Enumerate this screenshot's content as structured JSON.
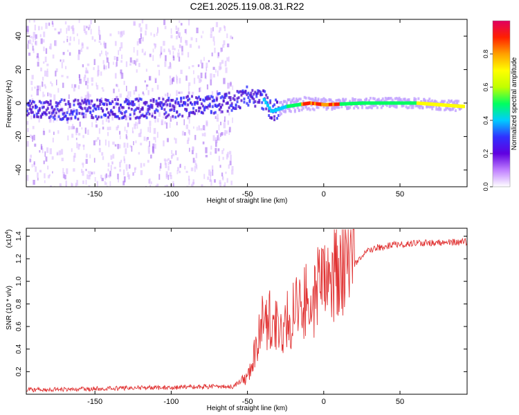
{
  "title": "C2E1.2025.119.08.31.R22",
  "chart_data": [
    {
      "type": "heatmap",
      "xlabel": "Height of straight line (km)",
      "ylabel": "Frequency (Hz)",
      "xlim": [
        -195,
        94
      ],
      "ylim": [
        -50,
        50
      ],
      "xticks": [
        -150,
        -100,
        -50,
        0,
        50
      ],
      "yticks": [
        -40,
        -20,
        0,
        20,
        40
      ],
      "colorbar": {
        "label": "Normalized spectral amplitude",
        "range": [
          0.0,
          1.0
        ],
        "ticks": [
          0.0,
          0.2,
          0.4,
          0.6,
          0.8
        ],
        "colormap": [
          "#ffffff",
          "#c080ff",
          "#6000e0",
          "#3030ff",
          "#00ccff",
          "#00ff60",
          "#c0ff00",
          "#ffff00",
          "#ffa000",
          "#ff2000",
          "#e00060"
        ]
      },
      "features": {
        "ridge_center_hz": [
          [
            -195,
            -4
          ],
          [
            -150,
            -4
          ],
          [
            -100,
            -3
          ],
          [
            -60,
            1
          ],
          [
            -50,
            4
          ],
          [
            -40,
            2
          ],
          [
            -35,
            -5
          ],
          [
            -25,
            -2
          ],
          [
            -10,
            0
          ],
          [
            0,
            -1
          ],
          [
            25,
            0
          ],
          [
            60,
            0
          ],
          [
            90,
            -2
          ]
        ],
        "note": "narrow high-amplitude ridge near 0 Hz above -30 km; broad noisy scatter below -60 km"
      }
    },
    {
      "type": "line",
      "xlabel": "Height of straight line (km)",
      "ylabel": "SNR (10 * v/v)",
      "scale_label": "(x10^4)",
      "xlim": [
        -195,
        94
      ],
      "ylim": [
        0,
        1.47
      ],
      "xticks": [
        -150,
        -100,
        -50,
        0,
        50
      ],
      "yticks": [
        0.2,
        0.4,
        0.6,
        0.8,
        1.0,
        1.2,
        1.4
      ],
      "color": "#e03030",
      "envelope": [
        [
          -195,
          0.03
        ],
        [
          -150,
          0.04
        ],
        [
          -120,
          0.05
        ],
        [
          -100,
          0.05
        ],
        [
          -80,
          0.06
        ],
        [
          -60,
          0.06
        ],
        [
          -55,
          0.1
        ],
        [
          -50,
          0.15
        ],
        [
          -45,
          0.35
        ],
        [
          -40,
          0.6
        ],
        [
          -35,
          0.65
        ],
        [
          -30,
          0.55
        ],
        [
          -25,
          0.6
        ],
        [
          -20,
          0.7
        ],
        [
          -15,
          0.75
        ],
        [
          -10,
          0.8
        ],
        [
          -5,
          0.85
        ],
        [
          0,
          0.95
        ],
        [
          5,
          1.0
        ],
        [
          10,
          1.05
        ],
        [
          15,
          1.08
        ],
        [
          20,
          1.15
        ],
        [
          25,
          1.22
        ],
        [
          30,
          1.28
        ],
        [
          35,
          1.3
        ],
        [
          50,
          1.33
        ],
        [
          70,
          1.34
        ],
        [
          94,
          1.35
        ]
      ]
    }
  ]
}
